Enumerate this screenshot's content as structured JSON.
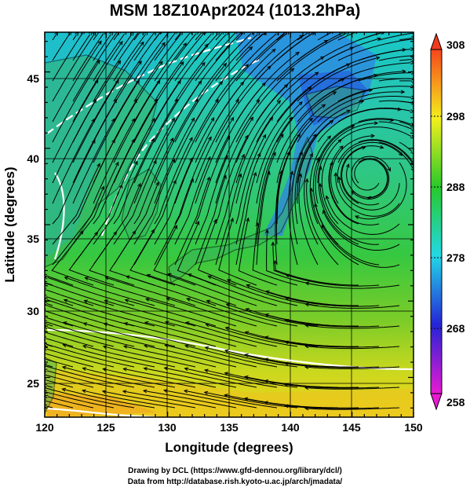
{
  "title": "MSM 18Z10Apr2024 (1013.2hPa)",
  "chart_data": {
    "type": "heatmap",
    "title": "MSM 18Z10Apr2024 (1013.2hPa)",
    "xlabel": "Longitude (degrees)",
    "ylabel": "Latitude  (degrees)",
    "xlim": [
      120,
      150
    ],
    "ylim": [
      22.4,
      47.6
    ],
    "x_ticks": [
      120,
      125,
      130,
      135,
      140,
      145,
      150
    ],
    "x_tick_labels": [
      "120",
      "125",
      "130",
      "135",
      "140",
      "145",
      "150"
    ],
    "y_ticks": [
      25,
      30,
      35,
      40,
      45
    ],
    "y_tick_labels": [
      "25",
      "30",
      "35",
      "40",
      "45"
    ],
    "colorbar": {
      "min": 258,
      "max": 308,
      "tick_values": [
        258,
        268,
        278,
        288,
        298,
        308
      ],
      "tick_labels": [
        "258",
        "268",
        "278",
        "288",
        "298",
        "308"
      ],
      "colors": [
        "#e81ad2",
        "#2424d6",
        "#23d8e6",
        "#27c92a",
        "#f4ef1c",
        "#f7461c"
      ]
    },
    "grid": true,
    "overlay": "streamlines",
    "cyclone_center": [
      146,
      38.5
    ]
  },
  "credits": {
    "line1": "Drawing by DCL (https://www.gfd-dennou.org/library/dcl/)",
    "line2": "Data from http://database.rish.kyoto-u.ac.jp/arch/jmadata/"
  }
}
